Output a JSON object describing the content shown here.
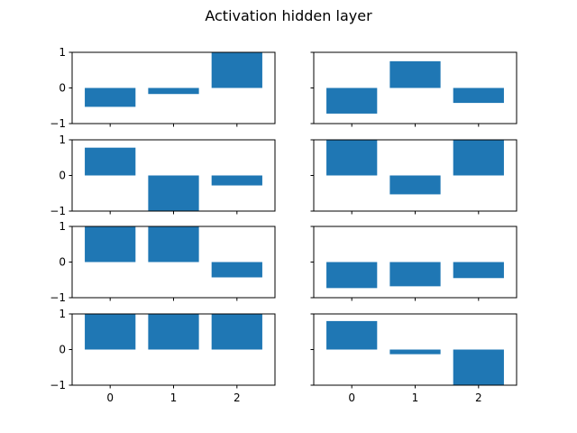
{
  "title": "Activation hidden layer",
  "colors": {
    "bar": "#1f77b4",
    "axes": "#000000",
    "background": "#ffffff"
  },
  "chart_data": {
    "type": "bar",
    "layout": "4x2 subplots, shared x and y axes",
    "title": "Activation hidden layer",
    "categories": [
      "0",
      "1",
      "2"
    ],
    "ylim": [
      -1,
      1
    ],
    "yticks": [
      "1",
      "0",
      "−1"
    ],
    "grid": false,
    "panels": [
      {
        "values": [
          -0.53,
          -0.17,
          1.0
        ]
      },
      {
        "values": [
          -0.72,
          0.75,
          -0.42
        ]
      },
      {
        "values": [
          0.78,
          -1.0,
          -0.28
        ]
      },
      {
        "values": [
          1.0,
          -0.53,
          1.0
        ]
      },
      {
        "values": [
          1.0,
          1.0,
          -0.43
        ]
      },
      {
        "values": [
          -0.73,
          -0.68,
          -0.45
        ]
      },
      {
        "values": [
          1.0,
          1.0,
          1.0
        ]
      },
      {
        "values": [
          0.8,
          -0.13,
          -1.0
        ]
      }
    ]
  }
}
